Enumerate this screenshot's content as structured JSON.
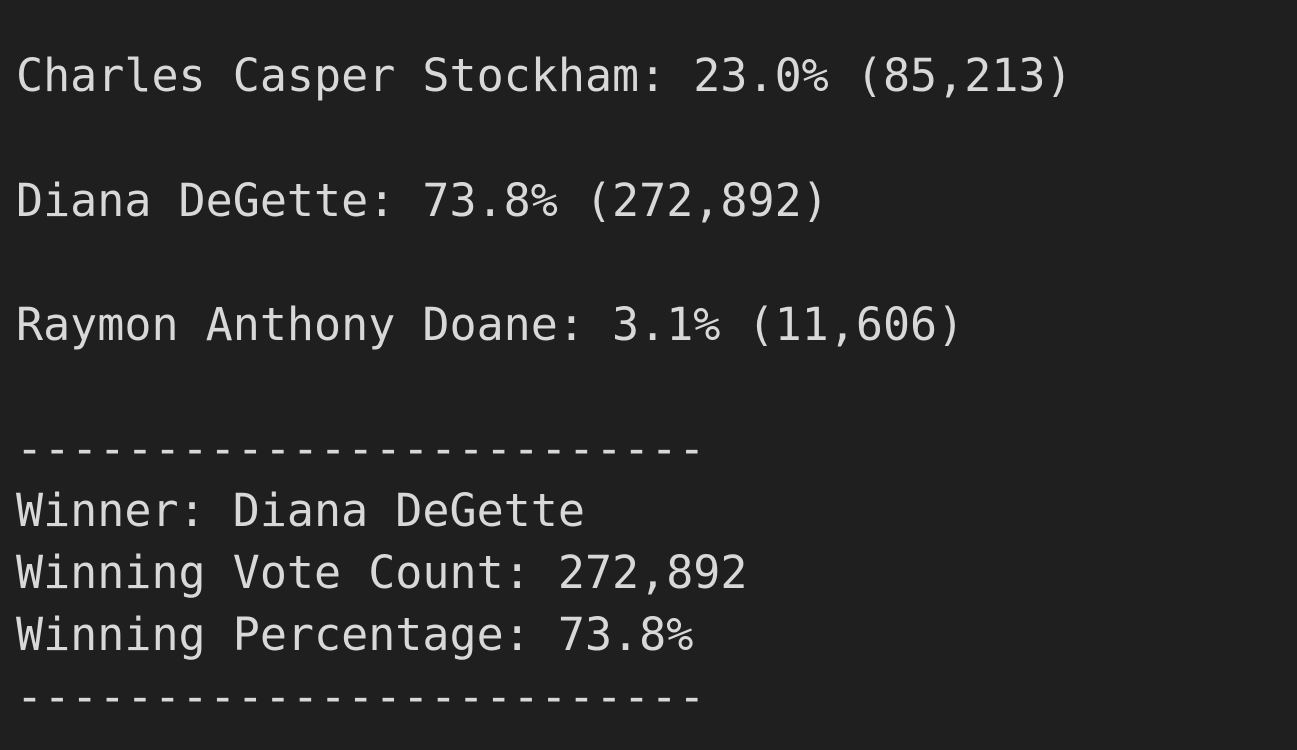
{
  "terminal": {
    "background": "#1f1f1f",
    "text_color": "#d8d8d8",
    "lines": [
      "Charles Casper Stockham: 23.0% (85,213)",
      "Diana DeGette: 73.8% (272,892)",
      "Raymon Anthony Doane: 3.1% (11,606)",
      "-------------------------",
      "Winner: Diana DeGette",
      "Winning Vote Count: 272,892",
      "Winning Percentage: 73.8%",
      "-------------------------"
    ]
  }
}
